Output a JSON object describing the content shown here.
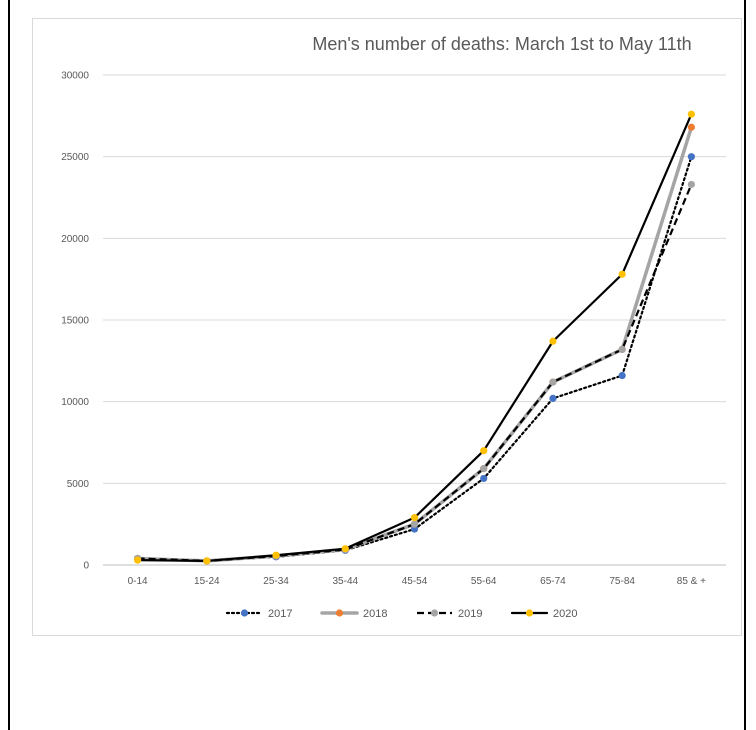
{
  "chart_data": {
    "type": "line",
    "title": "Men's number of deaths: March 1st to May 11th",
    "categories": [
      "0-14",
      "15-24",
      "25-34",
      "35-44",
      "45-54",
      "55-64",
      "65-74",
      "75-84",
      "85 & +"
    ],
    "ylim": [
      0,
      30000
    ],
    "yticks": [
      0,
      5000,
      10000,
      15000,
      20000,
      25000,
      30000
    ],
    "grid": true,
    "legend_position": "bottom",
    "series": [
      {
        "name": "2017",
        "line_color": "#000000",
        "marker_color": "#4472c4",
        "line_style": "dotted",
        "values": [
          400,
          250,
          500,
          900,
          2200,
          5300,
          10200,
          11600,
          25000
        ]
      },
      {
        "name": "2018",
        "line_color": "#a5a5a5",
        "marker_color": "#ed7d31",
        "line_style": "solid-thick",
        "values": [
          400,
          250,
          550,
          950,
          2500,
          5900,
          11200,
          13200,
          26800
        ]
      },
      {
        "name": "2019",
        "line_color": "#000000",
        "marker_color": "#a5a5a5",
        "line_style": "dashed",
        "values": [
          400,
          250,
          550,
          950,
          2500,
          5900,
          11200,
          13200,
          23300
        ]
      },
      {
        "name": "2020",
        "line_color": "#000000",
        "marker_color": "#ffc000",
        "line_style": "solid",
        "values": [
          300,
          250,
          600,
          1000,
          2900,
          7000,
          13700,
          17800,
          27600
        ]
      }
    ]
  }
}
